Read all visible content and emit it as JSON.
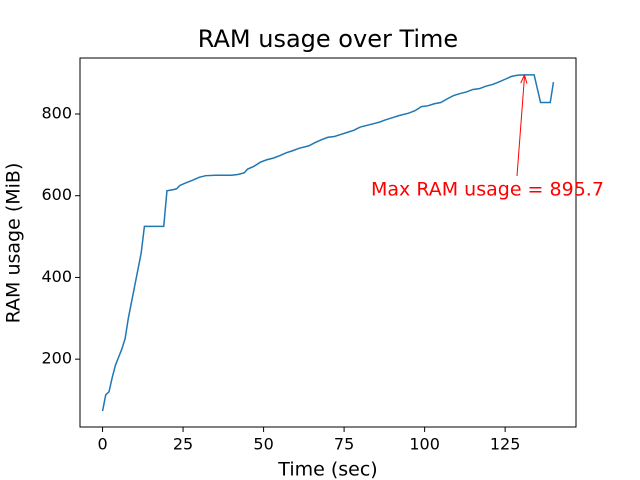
{
  "chart_data": {
    "type": "line",
    "title": "RAM usage over Time",
    "x_label": "Time (sec)",
    "y_label": "RAM usage (MiB)",
    "xlim": [
      -7,
      147
    ],
    "ylim": [
      34,
      937
    ],
    "xticks": [
      0,
      25,
      50,
      75,
      100,
      125
    ],
    "yticks": [
      200,
      400,
      600,
      800
    ],
    "grid": false,
    "x": [
      0,
      1,
      2,
      3,
      4,
      5,
      6,
      7,
      8,
      10,
      12,
      13,
      15,
      17,
      19,
      20,
      22,
      23,
      24,
      26,
      28,
      30,
      32,
      35,
      38,
      40,
      42,
      44,
      45,
      47,
      49,
      51,
      53,
      55,
      57,
      59,
      61,
      64,
      66,
      68,
      70,
      72,
      74,
      76,
      78,
      80,
      82,
      84,
      86,
      88,
      90,
      92,
      95,
      97,
      99,
      101,
      103,
      105,
      107,
      109,
      111,
      113,
      115,
      117,
      119,
      121,
      123,
      125,
      127,
      129,
      131,
      133,
      134,
      136,
      138,
      139,
      140
    ],
    "series": [
      {
        "name": "RAM usage",
        "color": "#1f77b4",
        "values": [
          73,
          113,
          120,
          155,
          185,
          205,
          225,
          250,
          300,
          380,
          460,
          525,
          525,
          525,
          525,
          612,
          615,
          617,
          625,
          632,
          638,
          645,
          649,
          650,
          650,
          650,
          652,
          656,
          665,
          672,
          682,
          688,
          692,
          698,
          705,
          710,
          716,
          722,
          730,
          737,
          743,
          745,
          750,
          755,
          760,
          768,
          772,
          776,
          780,
          786,
          791,
          796,
          802,
          808,
          818,
          820,
          825,
          828,
          837,
          845,
          850,
          854,
          860,
          862,
          868,
          872,
          878,
          885,
          892,
          895,
          895.7,
          895.7,
          895.7,
          828,
          828,
          828,
          878
        ]
      }
    ],
    "annotation": {
      "text": "Max RAM usage = 895.7",
      "color": "red"
    }
  }
}
